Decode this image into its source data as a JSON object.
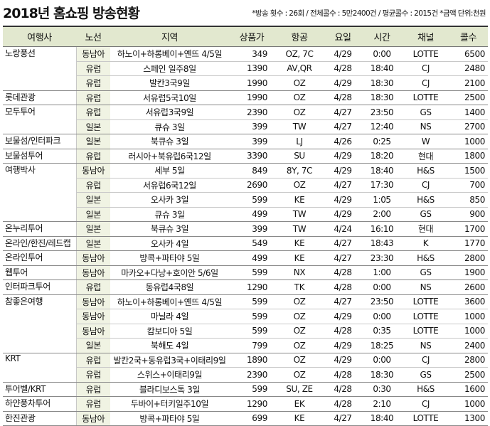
{
  "header": {
    "title": "2018년 홈쇼핑 방송현황",
    "note": "*방송 횟수 : 26회 / 전체콜수 : 5만2400건 / 평균콜수 : 2015건 *금액 단위:천원"
  },
  "columns": [
    "여행사",
    "노선",
    "지역",
    "상품가",
    "항공",
    "요일",
    "시간",
    "채널",
    "콜수"
  ],
  "groups": [
    {
      "company": "노랑풍선",
      "rows": [
        [
          "동남아",
          "하노이+하롱베이+옌뜨 4/5일",
          "349",
          "OZ, 7C",
          "4/29",
          "0:00",
          "LOTTE",
          "6500"
        ],
        [
          "유럽",
          "스페인 일주8일",
          "1390",
          "AV,QR",
          "4/28",
          "18:40",
          "CJ",
          "2480"
        ],
        [
          "유럽",
          "발칸3국9일",
          "1990",
          "OZ",
          "4/29",
          "18:30",
          "CJ",
          "2100"
        ]
      ]
    },
    {
      "company": "롯데관광",
      "rows": [
        [
          "유럽",
          "서유럽5국10일",
          "1990",
          "OZ",
          "4/28",
          "18:30",
          "LOTTE",
          "2500"
        ]
      ]
    },
    {
      "company": "모두투어",
      "rows": [
        [
          "유럽",
          "서유럽3국9일",
          "2390",
          "OZ",
          "4/27",
          "23:50",
          "GS",
          "1400"
        ],
        [
          "일본",
          "큐슈 3일",
          "399",
          "TW",
          "4/27",
          "12:40",
          "NS",
          "2700"
        ]
      ]
    },
    {
      "company": "보물섬/인터파크",
      "rows": [
        [
          "일본",
          "북큐슈 3일",
          "399",
          "LJ",
          "4/26",
          "0:25",
          "W",
          "1000"
        ]
      ]
    },
    {
      "company": "보물섬투어",
      "rows": [
        [
          "유럽",
          "러시아+북유럽6국12일",
          "3390",
          "SU",
          "4/29",
          "18:20",
          "현대",
          "1800"
        ]
      ]
    },
    {
      "company": "여행박사",
      "rows": [
        [
          "동남아",
          "세부 5일",
          "849",
          "8Y, 7C",
          "4/29",
          "18:40",
          "H&S",
          "1500"
        ],
        [
          "유럽",
          "서유럽6국12일",
          "2690",
          "OZ",
          "4/27",
          "17:30",
          "CJ",
          "700"
        ],
        [
          "일본",
          "오사카 3일",
          "599",
          "KE",
          "4/29",
          "1:05",
          "H&S",
          "850"
        ],
        [
          "일본",
          "큐슈 3일",
          "499",
          "TW",
          "4/29",
          "2:00",
          "GS",
          "900"
        ]
      ]
    },
    {
      "company": "온누리투어",
      "rows": [
        [
          "일본",
          "북큐슈 3일",
          "399",
          "TW",
          "4/24",
          "16:10",
          "현대",
          "1700"
        ]
      ]
    },
    {
      "company": "온라인/한진/레드캡",
      "rows": [
        [
          "일본",
          "오사카 4일",
          "549",
          "KE",
          "4/27",
          "18:43",
          "K",
          "1770"
        ]
      ]
    },
    {
      "company": "온라인투어",
      "rows": [
        [
          "동남아",
          "방콕+파타야 5일",
          "499",
          "KE",
          "4/27",
          "23:30",
          "H&S",
          "2800"
        ]
      ]
    },
    {
      "company": "웹투어",
      "rows": [
        [
          "동남아",
          "마카오+다낭+호이안 5/6일",
          "599",
          "NX",
          "4/28",
          "1:00",
          "GS",
          "1900"
        ]
      ]
    },
    {
      "company": "인터파크투어",
      "rows": [
        [
          "유럽",
          "동유럽4국8일",
          "1290",
          "TK",
          "4/28",
          "0:00",
          "NS",
          "2600"
        ]
      ]
    },
    {
      "company": "참좋은여행",
      "rows": [
        [
          "동남아",
          "하노이+하롱베이+옌뜨 4/5일",
          "599",
          "OZ",
          "4/27",
          "23:50",
          "LOTTE",
          "3600"
        ],
        [
          "동남아",
          "마닐라 4일",
          "599",
          "OZ",
          "4/29",
          "0:00",
          "LOTTE",
          "1000"
        ],
        [
          "동남아",
          "캄보디아 5일",
          "599",
          "OZ",
          "4/28",
          "0:35",
          "LOTTE",
          "1000"
        ],
        [
          "일본",
          "북해도 4일",
          "799",
          "OZ",
          "4/29",
          "18:25",
          "NS",
          "2400"
        ]
      ]
    },
    {
      "company": "KRT",
      "rows": [
        [
          "유럽",
          "발칸2국+동유럽3국+이태리9일",
          "1890",
          "OZ",
          "4/29",
          "0:00",
          "CJ",
          "2800"
        ],
        [
          "유럽",
          "스위스+이태리9일",
          "2390",
          "OZ",
          "4/28",
          "18:30",
          "GS",
          "2500"
        ]
      ]
    },
    {
      "company": "투어벨/KRT",
      "rows": [
        [
          "유럽",
          "블라디보스톡 3일",
          "599",
          "SU, ZE",
          "4/28",
          "0:30",
          "H&S",
          "1600"
        ]
      ]
    },
    {
      "company": "하얀풍차투어",
      "rows": [
        [
          "유럽",
          "두바이+터키일주10일",
          "1290",
          "EK",
          "4/28",
          "2:10",
          "CJ",
          "1000"
        ]
      ]
    },
    {
      "company": "한진관광",
      "rows": [
        [
          "동남아",
          "방콕+파타야 5일",
          "699",
          "KE",
          "4/27",
          "18:40",
          "LOTTE",
          "1300"
        ]
      ]
    }
  ]
}
